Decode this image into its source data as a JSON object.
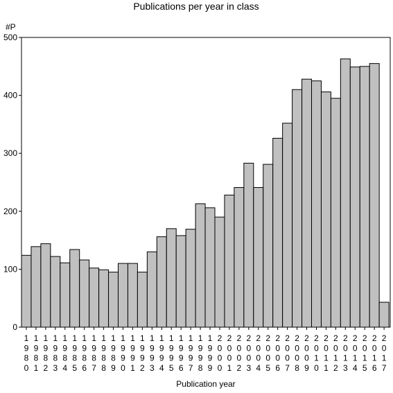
{
  "chart_data": {
    "type": "bar",
    "title": "Publications per year in class",
    "xlabel": "Publication year",
    "ylabel": "#P",
    "ylim": [
      0,
      500
    ],
    "yticks": [
      0,
      100,
      200,
      300,
      400,
      500
    ],
    "grid": false,
    "categories": [
      "1980",
      "1981",
      "1982",
      "1983",
      "1984",
      "1985",
      "1986",
      "1987",
      "1988",
      "1989",
      "1990",
      "1991",
      "1992",
      "1993",
      "1994",
      "1995",
      "1996",
      "1997",
      "1998",
      "1999",
      "2000",
      "2001",
      "2002",
      "2003",
      "2004",
      "2005",
      "2006",
      "2007",
      "2008",
      "2009",
      "2010",
      "2011",
      "2012",
      "2013",
      "2014",
      "2015",
      "2016",
      "2017"
    ],
    "values": [
      124,
      139,
      144,
      122,
      111,
      134,
      116,
      102,
      99,
      95,
      110,
      110,
      95,
      130,
      156,
      170,
      158,
      169,
      213,
      206,
      190,
      228,
      241,
      283,
      241,
      281,
      326,
      352,
      410,
      428,
      425,
      406,
      395,
      463,
      449,
      450,
      455,
      43
    ]
  }
}
